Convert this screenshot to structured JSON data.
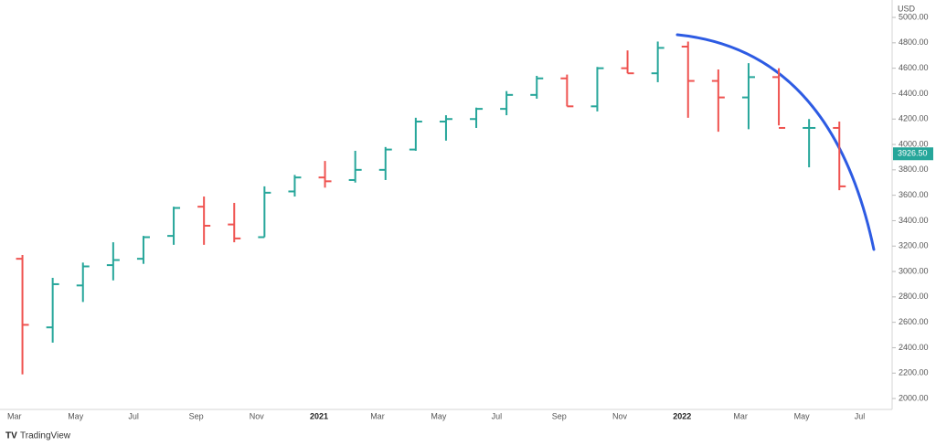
{
  "chart_data": {
    "type": "ohlc",
    "currency": "USD",
    "brand": "TradingView",
    "up_color": "#26a69a",
    "down_color": "#ef5350",
    "x": [
      "2020-03",
      "2020-04",
      "2020-05",
      "2020-06",
      "2020-07",
      "2020-08",
      "2020-09",
      "2020-10",
      "2020-11",
      "2020-12",
      "2021-01",
      "2021-02",
      "2021-03",
      "2021-04",
      "2021-05",
      "2021-06",
      "2021-07",
      "2021-08",
      "2021-09",
      "2021-10",
      "2021-11",
      "2021-12",
      "2022-01",
      "2022-02",
      "2022-03",
      "2022-04",
      "2022-05",
      "2022-06"
    ],
    "open": [
      3100,
      2560,
      2890,
      3050,
      3100,
      3280,
      3510,
      3370,
      3270,
      3630,
      3740,
      3720,
      3800,
      3960,
      4180,
      4200,
      4280,
      4390,
      4520,
      4300,
      4600,
      4560,
      4770,
      4500,
      4370,
      4530,
      4130,
      4130
    ],
    "high": [
      3130,
      2950,
      3070,
      3230,
      3280,
      3510,
      3590,
      3540,
      3670,
      3760,
      3870,
      3950,
      3980,
      4210,
      4230,
      4290,
      4420,
      4540,
      4550,
      4610,
      4740,
      4810,
      4810,
      4590,
      4640,
      4600,
      4200,
      4180
    ],
    "low": [
      2190,
      2440,
      2760,
      2930,
      3060,
      3210,
      3210,
      3230,
      3270,
      3590,
      3660,
      3700,
      3720,
      3950,
      4030,
      4130,
      4230,
      4360,
      4300,
      4260,
      4560,
      4490,
      4210,
      4100,
      4120,
      4150,
      3820,
      3640
    ],
    "close": [
      2580,
      2900,
      3040,
      3090,
      3270,
      3500,
      3360,
      3260,
      3620,
      3740,
      3710,
      3800,
      3960,
      4180,
      4200,
      4280,
      4390,
      4520,
      4300,
      4600,
      4560,
      4760,
      4500,
      4370,
      4530,
      4130,
      4130,
      3670
    ],
    "xticks": [
      {
        "value": "2020-03",
        "label": "Mar"
      },
      {
        "value": "2020-05",
        "label": "May"
      },
      {
        "value": "2020-07",
        "label": "Jul"
      },
      {
        "value": "2020-09",
        "label": "Sep"
      },
      {
        "value": "2020-11",
        "label": "Nov"
      },
      {
        "value": "2021-01",
        "label": "2021"
      },
      {
        "value": "2021-03",
        "label": "Mar"
      },
      {
        "value": "2021-05",
        "label": "May"
      },
      {
        "value": "2021-07",
        "label": "Jul"
      },
      {
        "value": "2021-09",
        "label": "Sep"
      },
      {
        "value": "2021-11",
        "label": "Nov"
      },
      {
        "value": "2022-01",
        "label": "2022"
      },
      {
        "value": "2022-03",
        "label": "Mar"
      },
      {
        "value": "2022-05",
        "label": "May"
      },
      {
        "value": "2022-07",
        "label": "Jul"
      }
    ],
    "ylim": [
      1914,
      5137
    ],
    "yticks": [
      {
        "value": 2000,
        "label": "2000.00"
      },
      {
        "value": 2200,
        "label": "2200.00"
      },
      {
        "value": 2400,
        "label": "2400.00"
      },
      {
        "value": 2600,
        "label": "2600.00"
      },
      {
        "value": 2800,
        "label": "2800.00"
      },
      {
        "value": 3000,
        "label": "3000.00"
      },
      {
        "value": 3200,
        "label": "3200.00"
      },
      {
        "value": 3400,
        "label": "3400.00"
      },
      {
        "value": 3600,
        "label": "3600.00"
      },
      {
        "value": 3800,
        "label": "3800.00"
      },
      {
        "value": 4000,
        "label": "4000.00"
      },
      {
        "value": 4200,
        "label": "4200.00"
      },
      {
        "value": 4400,
        "label": "4400.00"
      },
      {
        "value": 4600,
        "label": "4600.00"
      },
      {
        "value": 4800,
        "label": "4800.00"
      },
      {
        "value": 5000,
        "label": "5000.00"
      }
    ],
    "last_price": {
      "value": 3926.5,
      "label": "3926.50"
    }
  }
}
